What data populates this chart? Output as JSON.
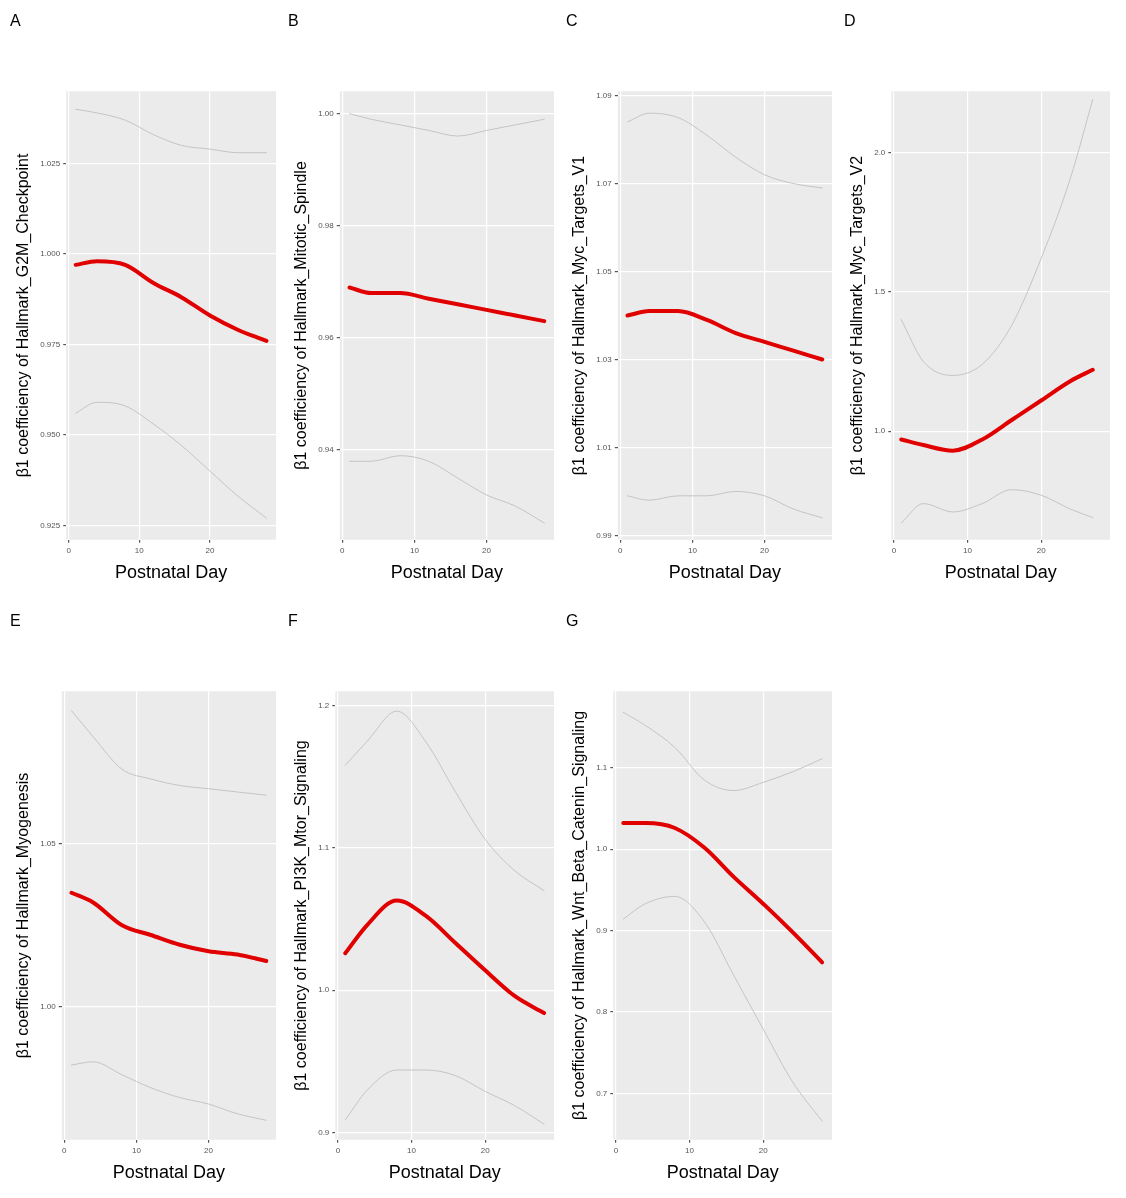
{
  "chart_data": [
    {
      "type": "line",
      "title": "A",
      "xlabel": "Postnatal Day",
      "ylabel": "β1 coefficiency of Hallmark_G2M_Checkpoint",
      "xlim": [
        -0.35,
        29.35
      ],
      "xticks": [
        0,
        10,
        20
      ],
      "ylim": [
        0.921,
        1.045
      ],
      "yticks": [
        {
          "value": 0.925,
          "label": "0.925"
        },
        {
          "value": 0.95,
          "label": "0.950"
        },
        0.975,
        {
          "value": 1,
          "label": "1.000"
        },
        1.025
      ],
      "grid": true,
      "legend": false,
      "series": [
        {
          "color": "#c4c4c4",
          "x": [
            1,
            4,
            8,
            12,
            16,
            20,
            24,
            28
          ],
          "values": [
            0.956,
            0.959,
            0.958,
            0.953,
            0.947,
            0.94,
            0.933,
            0.927
          ]
        },
        {
          "color": "#e00000",
          "x": [
            1,
            4,
            8,
            12,
            16,
            20,
            24,
            28
          ],
          "values": [
            0.997,
            0.998,
            0.997,
            0.992,
            0.988,
            0.983,
            0.979,
            0.976
          ]
        },
        {
          "color": "#c4c4c4",
          "x": [
            1,
            4,
            8,
            12,
            16,
            20,
            24,
            28
          ],
          "values": [
            1.04,
            1.039,
            1.037,
            1.033,
            1.03,
            1.029,
            1.028,
            1.028
          ]
        }
      ]
    },
    {
      "type": "line",
      "title": "B",
      "xlabel": "Postnatal Day",
      "ylabel": "β1 coefficiency of Hallmark_Mitotic_Spindle",
      "xlim": [
        -0.35,
        29.35
      ],
      "xticks": [
        0,
        10,
        20
      ],
      "ylim": [
        0.924,
        1.004
      ],
      "yticks": [
        0.94,
        0.96,
        0.98,
        {
          "value": 1,
          "label": "1.00"
        }
      ],
      "grid": true,
      "legend": false,
      "series": [
        {
          "color": "#c4c4c4",
          "x": [
            1,
            4,
            8,
            12,
            16,
            20,
            24,
            28
          ],
          "values": [
            0.938,
            0.938,
            0.939,
            0.938,
            0.935,
            0.932,
            0.93,
            0.927
          ]
        },
        {
          "color": "#e00000",
          "x": [
            1,
            4,
            8,
            12,
            16,
            20,
            24,
            28
          ],
          "values": [
            0.969,
            0.968,
            0.968,
            0.967,
            0.966,
            0.965,
            0.964,
            0.963
          ]
        },
        {
          "color": "#c4c4c4",
          "x": [
            1,
            4,
            8,
            12,
            16,
            20,
            24,
            28
          ],
          "values": [
            1.0,
            0.999,
            0.998,
            0.997,
            0.996,
            0.997,
            0.998,
            0.999
          ]
        }
      ]
    },
    {
      "type": "line",
      "title": "C",
      "xlabel": "Postnatal Day",
      "ylabel": "β1 coefficiency of Hallmark_Myc_Targets_V1",
      "xlim": [
        -0.35,
        29.35
      ],
      "xticks": [
        0,
        10,
        20
      ],
      "ylim": [
        0.989,
        1.091
      ],
      "yticks": [
        0.99,
        1.01,
        1.03,
        1.05,
        1.07,
        1.09
      ],
      "grid": true,
      "legend": false,
      "series": [
        {
          "color": "#c4c4c4",
          "x": [
            1,
            4,
            8,
            12,
            16,
            20,
            24,
            28
          ],
          "values": [
            0.999,
            0.998,
            0.999,
            0.999,
            1.0,
            0.999,
            0.996,
            0.994
          ]
        },
        {
          "color": "#e00000",
          "x": [
            1,
            4,
            8,
            12,
            16,
            20,
            24,
            28
          ],
          "values": [
            1.04,
            1.041,
            1.041,
            1.039,
            1.036,
            1.034,
            1.032,
            1.03
          ]
        },
        {
          "color": "#c4c4c4",
          "x": [
            1,
            4,
            8,
            12,
            16,
            20,
            24,
            28
          ],
          "values": [
            1.084,
            1.086,
            1.085,
            1.081,
            1.076,
            1.072,
            1.07,
            1.069
          ]
        }
      ]
    },
    {
      "type": "line",
      "title": "D",
      "xlabel": "Postnatal Day",
      "ylabel": "β1 coefficiency of Hallmark_Myc_Targets_V2",
      "xlim": [
        -0.35,
        29.35
      ],
      "xticks": [
        0,
        10,
        20
      ],
      "ylim": [
        0.61,
        2.22
      ],
      "yticks": [
        {
          "value": 1,
          "label": "1.0"
        },
        1.5,
        {
          "value": 2,
          "label": "2.0"
        }
      ],
      "grid": true,
      "legend": false,
      "series": [
        {
          "color": "#c4c4c4",
          "x": [
            1,
            4,
            8,
            12,
            16,
            20,
            24,
            27
          ],
          "values": [
            0.67,
            0.74,
            0.71,
            0.74,
            0.79,
            0.77,
            0.72,
            0.69
          ]
        },
        {
          "color": "#e00000",
          "x": [
            1,
            4,
            8,
            12,
            16,
            20,
            24,
            27
          ],
          "values": [
            0.97,
            0.95,
            0.93,
            0.97,
            1.04,
            1.11,
            1.18,
            1.22
          ]
        },
        {
          "color": "#c4c4c4",
          "x": [
            1,
            4,
            8,
            12,
            16,
            20,
            24,
            27
          ],
          "values": [
            1.4,
            1.25,
            1.2,
            1.24,
            1.38,
            1.62,
            1.91,
            2.19
          ]
        }
      ]
    },
    {
      "type": "line",
      "title": "E",
      "xlabel": "Postnatal Day",
      "ylabel": "β1 coefficiency of Hallmark_Myogenesis",
      "xlim": [
        -0.35,
        29.35
      ],
      "xticks": [
        0,
        10,
        20
      ],
      "ylim": [
        0.959,
        1.097
      ],
      "yticks": [
        {
          "value": 1,
          "label": "1.00"
        },
        1.05
      ],
      "grid": true,
      "legend": false,
      "series": [
        {
          "color": "#c4c4c4",
          "x": [
            1,
            4,
            8,
            12,
            16,
            20,
            24,
            28
          ],
          "values": [
            0.982,
            0.983,
            0.979,
            0.975,
            0.972,
            0.97,
            0.967,
            0.965
          ]
        },
        {
          "color": "#e00000",
          "x": [
            1,
            4,
            8,
            12,
            16,
            20,
            24,
            28
          ],
          "values": [
            1.035,
            1.032,
            1.025,
            1.022,
            1.019,
            1.017,
            1.016,
            1.014
          ]
        },
        {
          "color": "#c4c4c4",
          "x": [
            1,
            4,
            8,
            12,
            16,
            20,
            24,
            28
          ],
          "values": [
            1.091,
            1.083,
            1.073,
            1.07,
            1.068,
            1.067,
            1.066,
            1.065
          ]
        }
      ]
    },
    {
      "type": "line",
      "title": "F",
      "xlabel": "Postnatal Day",
      "ylabel": "β1 coefficiency of Hallmark_PI3K_Mtor_Signaling",
      "xlim": [
        -0.35,
        29.35
      ],
      "xticks": [
        0,
        10,
        20
      ],
      "ylim": [
        0.895,
        1.21
      ],
      "yticks": [
        0.9,
        {
          "value": 1,
          "label": "1.0"
        },
        1.1,
        1.2
      ],
      "grid": true,
      "legend": false,
      "series": [
        {
          "color": "#c4c4c4",
          "x": [
            1,
            4,
            8,
            12,
            16,
            20,
            24,
            28
          ],
          "values": [
            0.909,
            0.93,
            0.944,
            0.944,
            0.94,
            0.929,
            0.919,
            0.906
          ]
        },
        {
          "color": "#e00000",
          "x": [
            1,
            4,
            8,
            12,
            16,
            20,
            24,
            28
          ],
          "values": [
            1.026,
            1.046,
            1.063,
            1.052,
            1.033,
            1.014,
            0.996,
            0.984
          ]
        },
        {
          "color": "#c4c4c4",
          "x": [
            1,
            4,
            8,
            12,
            16,
            20,
            24,
            28
          ],
          "values": [
            1.158,
            1.175,
            1.196,
            1.174,
            1.139,
            1.106,
            1.084,
            1.07
          ]
        }
      ]
    },
    {
      "type": "line",
      "title": "G",
      "xlabel": "Postnatal Day",
      "ylabel": "β1 coefficiency of Hallmark_Wnt_Beta_Catenin_Signaling",
      "xlim": [
        -0.35,
        29.35
      ],
      "xticks": [
        0,
        10,
        20
      ],
      "ylim": [
        0.643,
        1.194
      ],
      "yticks": [
        0.7,
        0.8,
        0.9,
        {
          "value": 1,
          "label": "1.0"
        },
        1.1
      ],
      "grid": true,
      "legend": false,
      "series": [
        {
          "color": "#c4c4c4",
          "x": [
            1,
            4,
            8,
            12,
            16,
            20,
            24,
            28
          ],
          "values": [
            0.914,
            0.933,
            0.942,
            0.911,
            0.845,
            0.779,
            0.714,
            0.666
          ]
        },
        {
          "color": "#e00000",
          "x": [
            1,
            4,
            8,
            12,
            16,
            20,
            24,
            28
          ],
          "values": [
            1.032,
            1.032,
            1.026,
            1.002,
            0.966,
            0.933,
            0.898,
            0.861
          ]
        },
        {
          "color": "#c4c4c4",
          "x": [
            1,
            4,
            8,
            12,
            16,
            20,
            24,
            28
          ],
          "values": [
            1.168,
            1.152,
            1.125,
            1.085,
            1.072,
            1.082,
            1.095,
            1.111
          ]
        }
      ]
    }
  ]
}
